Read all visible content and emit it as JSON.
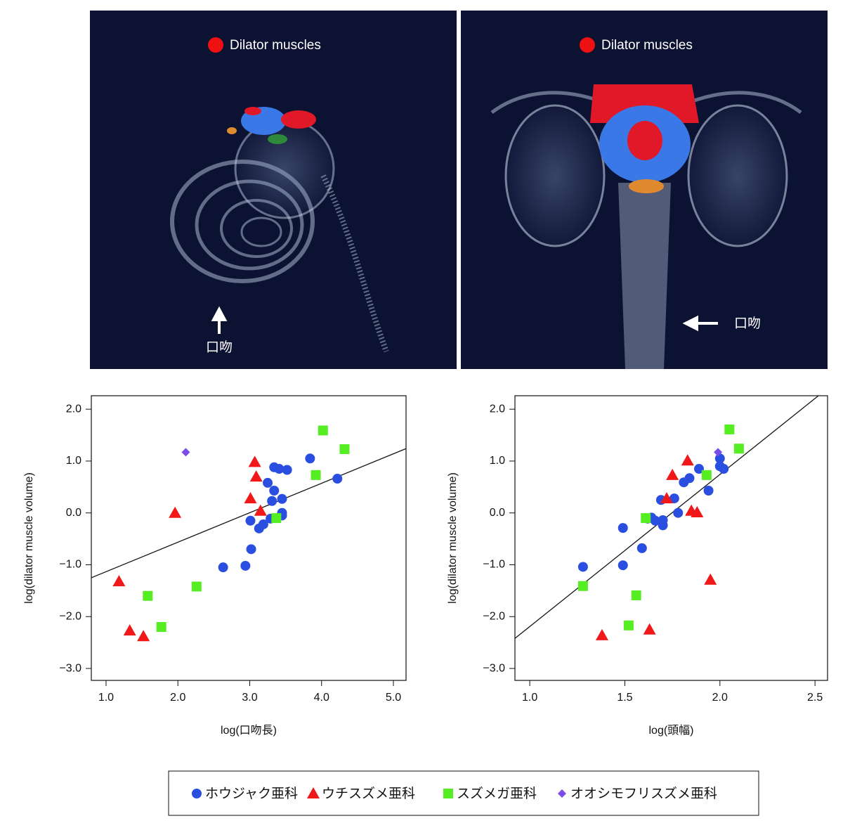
{
  "images": [
    {
      "label": "Dilator muscles",
      "pointer": "口吻"
    },
    {
      "label": "Dilator muscles",
      "pointer": "口吻"
    }
  ],
  "chart_data": [
    {
      "type": "scatter",
      "x_label": "log(口吻長)",
      "y_label": "log(dilator muscle volume)",
      "xlim": [
        0.795,
        5.176
      ],
      "ylim": [
        -3.23,
        2.26
      ],
      "xticks": [
        {
          "value": 1,
          "label": "1.0"
        },
        {
          "value": 2,
          "label": "2.0"
        },
        {
          "value": 3,
          "label": "3.0"
        },
        {
          "value": 4,
          "label": "4.0"
        },
        {
          "value": 5,
          "label": "5.0"
        }
      ],
      "yticks": [
        {
          "value": -3,
          "label": "−3.0"
        },
        {
          "value": -2,
          "label": "−2.0"
        },
        {
          "value": -1,
          "label": "−1.0"
        },
        {
          "value": 0,
          "label": "0.0"
        },
        {
          "value": 1,
          "label": "1.0"
        },
        {
          "value": 2,
          "label": "2.0"
        }
      ],
      "fit_line": {
        "x": [
          0.795,
          5.176
        ],
        "y": [
          -1.25,
          1.24
        ]
      },
      "series": [
        {
          "name": "ホウジャク亜科",
          "color": "#2a4fe0",
          "marker": "circle",
          "x": [
            2.63,
            2.94,
            3.02,
            3.01,
            3.13,
            3.19,
            3.25,
            3.31,
            3.29,
            3.34,
            3.34,
            3.41,
            3.45,
            3.45,
            3.45,
            3.52,
            3.84,
            4.22
          ],
          "values": [
            -1.05,
            -1.02,
            -0.7,
            -0.15,
            -0.3,
            -0.22,
            0.58,
            0.23,
            -0.11,
            0.88,
            0.43,
            0.85,
            0.0,
            0.27,
            -0.05,
            0.83,
            1.05,
            0.66
          ]
        },
        {
          "name": "ウチスズメ亜科",
          "color": "#f01818",
          "marker": "triangle",
          "x": [
            1.18,
            1.33,
            1.52,
            1.96,
            3.01,
            3.07,
            3.09,
            3.15
          ],
          "values": [
            -1.32,
            -2.27,
            -2.38,
            0.0,
            0.28,
            0.98,
            0.7,
            0.04
          ]
        },
        {
          "name": "スズメガ亜科",
          "color": "#55ee22",
          "marker": "square",
          "x": [
            1.58,
            1.77,
            2.26,
            3.37,
            3.92,
            4.02,
            4.32
          ],
          "values": [
            -1.6,
            -2.2,
            -1.42,
            -0.1,
            0.73,
            1.59,
            1.23
          ]
        },
        {
          "name": "オオシモフリスズメ亜科",
          "color": "#7a4de8",
          "marker": "diamond",
          "x": [
            2.11
          ],
          "values": [
            1.17
          ]
        }
      ]
    },
    {
      "type": "scatter",
      "x_label": "log(頭幅)",
      "y_label": "log(dilator muscle volume)",
      "xlim": [
        0.922,
        2.566
      ],
      "ylim": [
        -3.23,
        2.26
      ],
      "xticks": [
        {
          "value": 1,
          "label": "1.0"
        },
        1.5,
        {
          "value": 2,
          "label": "2.0"
        },
        2.5
      ],
      "yticks": [
        {
          "value": -3,
          "label": "−3.0"
        },
        {
          "value": -2,
          "label": "−2.0"
        },
        {
          "value": -1,
          "label": "−1.0"
        },
        {
          "value": 0,
          "label": "0.0"
        },
        {
          "value": 1,
          "label": "1.0"
        },
        {
          "value": 2,
          "label": "2.0"
        }
      ],
      "fit_line": {
        "x": [
          0.922,
          2.518
        ],
        "y": [
          -2.42,
          2.26
        ]
      },
      "series": [
        {
          "name": "ホウジャク亜科",
          "color": "#2a4fe0",
          "marker": "circle",
          "x": [
            1.28,
            1.49,
            1.49,
            1.59,
            1.62,
            1.64,
            1.66,
            1.69,
            1.7,
            1.7,
            1.76,
            1.78,
            1.81,
            1.84,
            1.89,
            1.94,
            2.0,
            2.0,
            2.02
          ],
          "values": [
            -1.04,
            -0.29,
            -1.01,
            -0.68,
            -0.11,
            -0.09,
            -0.15,
            0.25,
            -0.14,
            -0.24,
            0.28,
            0.0,
            0.59,
            0.67,
            0.85,
            0.43,
            1.05,
            0.9,
            0.85
          ]
        },
        {
          "name": "ウチスズメ亜科",
          "color": "#f01818",
          "marker": "triangle",
          "x": [
            1.38,
            1.63,
            1.72,
            1.75,
            1.83,
            1.85,
            1.88,
            1.95
          ],
          "values": [
            -2.36,
            -2.25,
            0.28,
            0.73,
            1.01,
            0.04,
            0.01,
            -1.29
          ]
        },
        {
          "name": "スズメガ亜科",
          "color": "#55ee22",
          "marker": "square",
          "x": [
            1.28,
            1.52,
            1.56,
            1.61,
            1.93,
            2.05,
            2.1
          ],
          "values": [
            -1.41,
            -2.17,
            -1.59,
            -0.1,
            0.73,
            1.61,
            1.24
          ]
        },
        {
          "name": "オオシモフリスズメ亜科",
          "color": "#7a4de8",
          "marker": "diamond",
          "x": [
            1.99
          ],
          "values": [
            1.17
          ]
        }
      ]
    }
  ]
}
